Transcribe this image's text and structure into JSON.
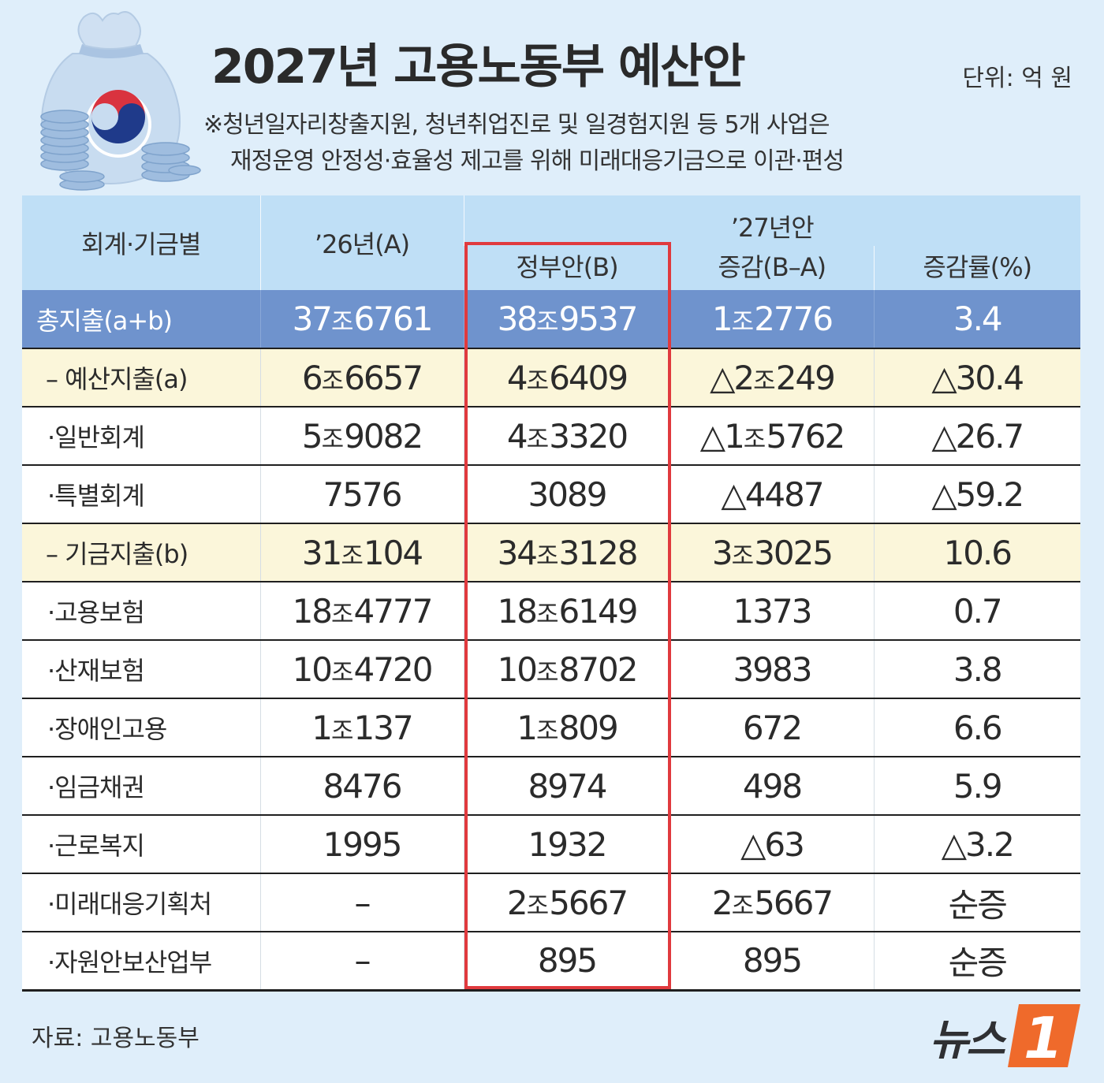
{
  "title": "2027년 고용노동부 예산안",
  "unit": "단위: 억 원",
  "note": {
    "line1": "※청년일자리창출지원, 청년취업진로 및 일경험지원 등 5개 사업은",
    "line2": "재정운영 안정성·효율성 제고를 위해 미래대응기금으로 이관·편성"
  },
  "table": {
    "header": {
      "category": "회계·기금별",
      "prev": "’26년(A)",
      "group": "’27년안",
      "gov": "정부안(B)",
      "diff": "증감(B–A)",
      "rate": "증감률(%)"
    },
    "rows": [
      {
        "label": "총지출(a+b)",
        "a": [
          "37",
          "6761"
        ],
        "b": [
          "38",
          "9537"
        ],
        "diff": [
          "1",
          "2776"
        ],
        "rate": "3.4",
        "type": "total"
      },
      {
        "label": "– 예산지출(a)",
        "a": [
          "6",
          "6657"
        ],
        "b": [
          "4",
          "6409"
        ],
        "diff": [
          "△2",
          "249"
        ],
        "rate": "△30.4",
        "type": "sub"
      },
      {
        "label": "·일반회계",
        "a": [
          "5",
          "9082"
        ],
        "b": [
          "4",
          "3320"
        ],
        "diff": [
          "△1",
          "5762"
        ],
        "rate": "△26.7",
        "type": "item"
      },
      {
        "label": "·특별회계",
        "a": [
          "",
          "7576"
        ],
        "b": [
          "",
          "3089"
        ],
        "diff": [
          "",
          "△4487"
        ],
        "rate": "△59.2",
        "type": "item"
      },
      {
        "label": "– 기금지출(b)",
        "a": [
          "31",
          "104"
        ],
        "b": [
          "34",
          "3128"
        ],
        "diff": [
          "3",
          "3025"
        ],
        "rate": "10.6",
        "type": "sub"
      },
      {
        "label": "·고용보험",
        "a": [
          "18",
          "4777"
        ],
        "b": [
          "18",
          "6149"
        ],
        "diff": [
          "",
          "1373"
        ],
        "rate": "0.7",
        "type": "item"
      },
      {
        "label": "·산재보험",
        "a": [
          "10",
          "4720"
        ],
        "b": [
          "10",
          "8702"
        ],
        "diff": [
          "",
          "3983"
        ],
        "rate": "3.8",
        "type": "item"
      },
      {
        "label": "·장애인고용",
        "a": [
          "1",
          "137"
        ],
        "b": [
          "1",
          "809"
        ],
        "diff": [
          "",
          "672"
        ],
        "rate": "6.6",
        "type": "item"
      },
      {
        "label": "·임금채권",
        "a": [
          "",
          "8476"
        ],
        "b": [
          "",
          "8974"
        ],
        "diff": [
          "",
          "498"
        ],
        "rate": "5.9",
        "type": "item"
      },
      {
        "label": "·근로복지",
        "a": [
          "",
          "1995"
        ],
        "b": [
          "",
          "1932"
        ],
        "diff": [
          "",
          "△63"
        ],
        "rate": "△3.2",
        "type": "item"
      },
      {
        "label": "·미래대응기획처",
        "a": [
          "",
          "–"
        ],
        "b": [
          "2",
          "5667"
        ],
        "diff": [
          "2",
          "5667"
        ],
        "rate": "순증",
        "type": "item"
      },
      {
        "label": "·자원안보산업부",
        "a": [
          "",
          "–"
        ],
        "b": [
          "",
          "895"
        ],
        "diff": [
          "",
          "895"
        ],
        "rate": "순증",
        "type": "item"
      }
    ],
    "jo_unit": "조"
  },
  "chart_data": {
    "type": "table",
    "title": "2027년 고용노동부 예산안",
    "unit": "단위: 억 원",
    "columns": [
      "회계·기금별",
      "’26년(A)",
      "정부안(B)",
      "증감(B–A)",
      "증감률(%)"
    ],
    "rows": [
      [
        "총지출(a+b)",
        376761,
        389537,
        12776,
        3.4
      ],
      [
        "예산지출(a)",
        66657,
        46409,
        -20249,
        -30.4
      ],
      [
        "일반회계",
        59082,
        43320,
        -15762,
        -26.7
      ],
      [
        "특별회계",
        7576,
        3089,
        -4487,
        -59.2
      ],
      [
        "기금지출(b)",
        310104,
        343128,
        33025,
        10.6
      ],
      [
        "고용보험",
        184777,
        186149,
        1373,
        0.7
      ],
      [
        "산재보험",
        104720,
        108702,
        3983,
        3.8
      ],
      [
        "장애인고용",
        10137,
        10809,
        672,
        6.6
      ],
      [
        "임금채권",
        8476,
        8974,
        498,
        5.9
      ],
      [
        "근로복지",
        1995,
        1932,
        -63,
        -3.2
      ],
      [
        "미래대응기획처",
        null,
        25667,
        25667,
        "순증"
      ],
      [
        "자원안보산업부",
        null,
        895,
        895,
        "순증"
      ]
    ],
    "highlight_column": "정부안(B)",
    "highlight_color": "#e03a3e"
  },
  "footer": {
    "source": "자료: 고용노동부",
    "logo_text": "뉴스",
    "logo_mark": "1"
  },
  "colors": {
    "background": "#dfeefa",
    "header": "#bfdff6",
    "total_row": "#6f93cd",
    "sub_row": "#fbf6da",
    "highlight": "#e03a3e",
    "logo_orange": "#ef6a2b"
  },
  "icons": [
    "money-bag-icon",
    "coin-stack-icon",
    "taegeuk-emblem-icon"
  ]
}
